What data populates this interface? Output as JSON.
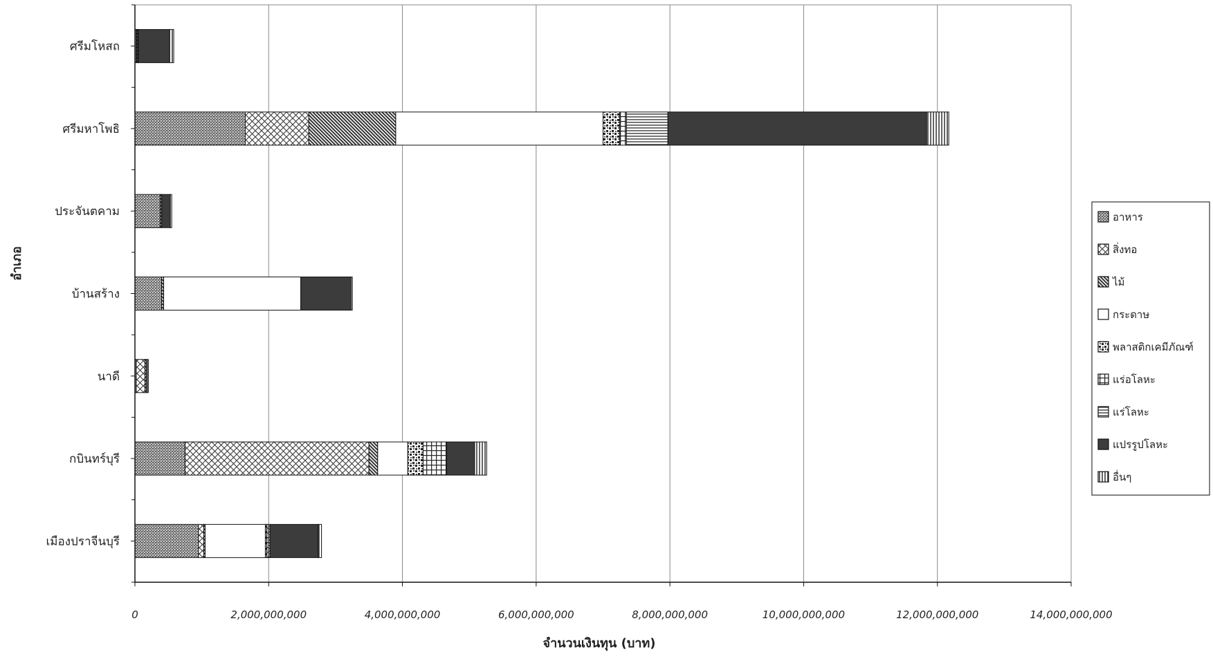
{
  "chart_data": {
    "type": "bar",
    "orientation": "horizontal",
    "stacked": true,
    "title": "",
    "xlabel": "จำนวนเงินทุน (บาท)",
    "ylabel": "อำเภอ",
    "xlim": [
      0,
      14000000000
    ],
    "xticks": [
      0,
      2000000000,
      4000000000,
      6000000000,
      8000000000,
      10000000000,
      12000000000,
      14000000000
    ],
    "xtick_labels": [
      "0",
      "2,000,000,000",
      "4,000,000,000",
      "6,000,000,000",
      "8,000,000,000",
      "10,000,000,000",
      "12,000,000,000",
      "14,000,000,000"
    ],
    "grid": "vertical",
    "legend_position": "right",
    "categories": [
      "ศรีมโหสถ",
      "ศรีมหาโพธิ",
      "ประจันตคาม",
      "บ้านสร้าง",
      "นาดี",
      "กบินทร์บุรี",
      "เมืองปราจีนบุรี"
    ],
    "series": [
      {
        "name": "อาหาร",
        "pattern": "dense-dots",
        "values": [
          20000000,
          1650000000,
          380000000,
          400000000,
          20000000,
          750000000,
          950000000
        ]
      },
      {
        "name": "สิ่งทอ",
        "pattern": "crosshatch",
        "values": [
          10000000,
          950000000,
          0,
          0,
          130000000,
          2750000000,
          80000000
        ]
      },
      {
        "name": "ไม้",
        "pattern": "diagonal",
        "values": [
          15000000,
          1300000000,
          20000000,
          30000000,
          20000000,
          130000000,
          20000000
        ]
      },
      {
        "name": "กระดาษ",
        "pattern": "white",
        "values": [
          5000000,
          3100000000,
          0,
          2050000000,
          0,
          450000000,
          900000000
        ]
      },
      {
        "name": "พลาสติกเคมีภัณฑ์",
        "pattern": "speckle",
        "values": [
          0,
          250000000,
          0,
          0,
          0,
          230000000,
          20000000
        ]
      },
      {
        "name": "แร่อโลหะ",
        "pattern": "grid",
        "values": [
          0,
          100000000,
          0,
          0,
          0,
          350000000,
          30000000
        ]
      },
      {
        "name": "แร่โลหะ",
        "pattern": "horizontal",
        "values": [
          0,
          620000000,
          0,
          0,
          0,
          0,
          20000000
        ]
      },
      {
        "name": "แปรรูปโลหะ",
        "pattern": "dark",
        "values": [
          470000000,
          3870000000,
          130000000,
          750000000,
          0,
          420000000,
          720000000
        ]
      },
      {
        "name": "อื่นๆ",
        "pattern": "vertical",
        "values": [
          60000000,
          330000000,
          20000000,
          20000000,
          30000000,
          180000000,
          50000000
        ]
      }
    ]
  }
}
